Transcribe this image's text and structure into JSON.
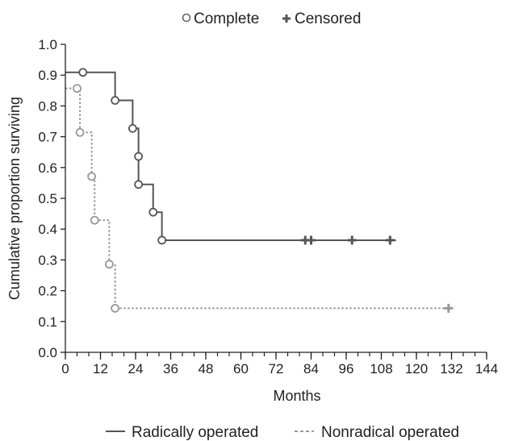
{
  "chart_data": {
    "type": "line",
    "subtype": "kaplan-meier step plot",
    "xlabel": "Months",
    "ylabel": "Cumulative proportion surviving",
    "xlim": [
      0,
      144
    ],
    "ylim": [
      0.0,
      1.0
    ],
    "xticks": [
      "0",
      "12",
      "24",
      "36",
      "48",
      "60",
      "72",
      "84",
      "96",
      "108",
      "120",
      "132",
      "144"
    ],
    "yticks": [
      "0.0",
      "0.1",
      "0.2",
      "0.3",
      "0.4",
      "0.5",
      "0.6",
      "0.7",
      "0.8",
      "0.9",
      "1.0"
    ],
    "grid": false,
    "marker_legend": {
      "position": "top",
      "items": [
        {
          "label": "Complete",
          "marker": "open-circle"
        },
        {
          "label": "Censored",
          "marker": "plus"
        }
      ]
    },
    "line_legend": {
      "position": "bottom",
      "items": [
        {
          "label": "Radically operated",
          "style": "solid"
        },
        {
          "label": "Nonradical operated",
          "style": "dashed"
        }
      ]
    },
    "series": [
      {
        "name": "Radically operated",
        "style": "solid",
        "color": "#555555",
        "steps": [
          [
            0,
            0.909
          ],
          [
            17,
            0.818
          ],
          [
            23,
            0.727
          ],
          [
            25,
            0.636
          ],
          [
            25,
            0.545
          ],
          [
            30,
            0.455
          ],
          [
            33,
            0.364
          ],
          [
            113,
            0.364
          ]
        ],
        "complete": [
          [
            6,
            0.909
          ],
          [
            17,
            0.818
          ],
          [
            23,
            0.727
          ],
          [
            25,
            0.636
          ],
          [
            25,
            0.545
          ],
          [
            30,
            0.455
          ],
          [
            33,
            0.364
          ]
        ],
        "censored": [
          [
            82,
            0.364
          ],
          [
            84,
            0.364
          ],
          [
            98,
            0.364
          ],
          [
            111,
            0.364
          ]
        ]
      },
      {
        "name": "Nonradical operated",
        "style": "dashed",
        "color": "#999999",
        "steps": [
          [
            0,
            0.857
          ],
          [
            5,
            0.714
          ],
          [
            9,
            0.571
          ],
          [
            10,
            0.429
          ],
          [
            15,
            0.286
          ],
          [
            17,
            0.143
          ],
          [
            131,
            0.143
          ]
        ],
        "complete": [
          [
            4,
            0.857
          ],
          [
            5,
            0.714
          ],
          [
            9,
            0.571
          ],
          [
            10,
            0.429
          ],
          [
            15,
            0.286
          ],
          [
            17,
            0.143
          ]
        ],
        "censored": [
          [
            131,
            0.143
          ]
        ]
      }
    ]
  }
}
